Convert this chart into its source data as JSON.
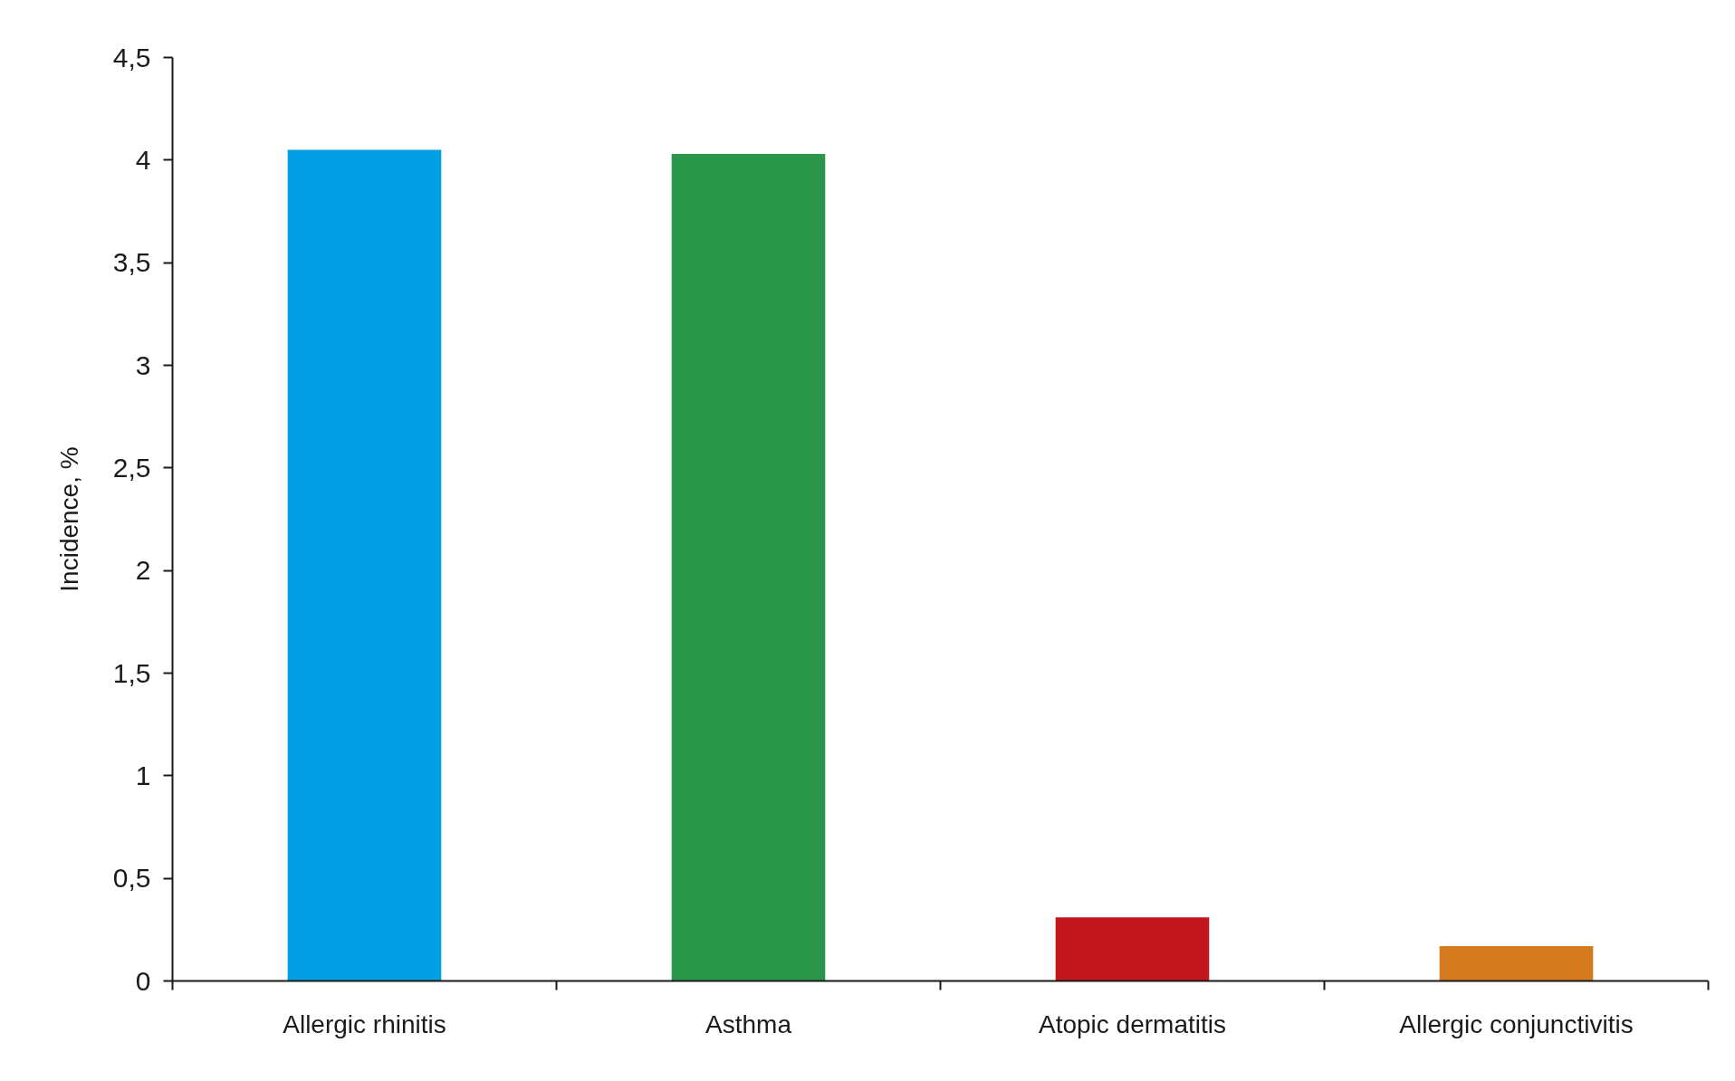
{
  "chart_data": {
    "type": "bar",
    "ylabel": "Incidence, %",
    "categories": [
      "Allergic rhinitis",
      "Asthma",
      "Atopic dermatitis",
      "Allergic conjunctivitis"
    ],
    "values": [
      4.05,
      4.03,
      0.31,
      0.17
    ],
    "colors": [
      "#009fe3",
      "#2a964a",
      "#c3161c",
      "#d67b1d"
    ],
    "ylim": [
      0,
      4.5
    ],
    "yticks": [
      0,
      {
        "value": 0.5,
        "label": "0,5"
      },
      1,
      {
        "value": 1.5,
        "label": "1,5"
      },
      2,
      {
        "value": 2.5,
        "label": "2,5"
      },
      3,
      {
        "value": 3.5,
        "label": "3,5"
      },
      4,
      {
        "value": 4.5,
        "label": "4,5"
      }
    ]
  }
}
